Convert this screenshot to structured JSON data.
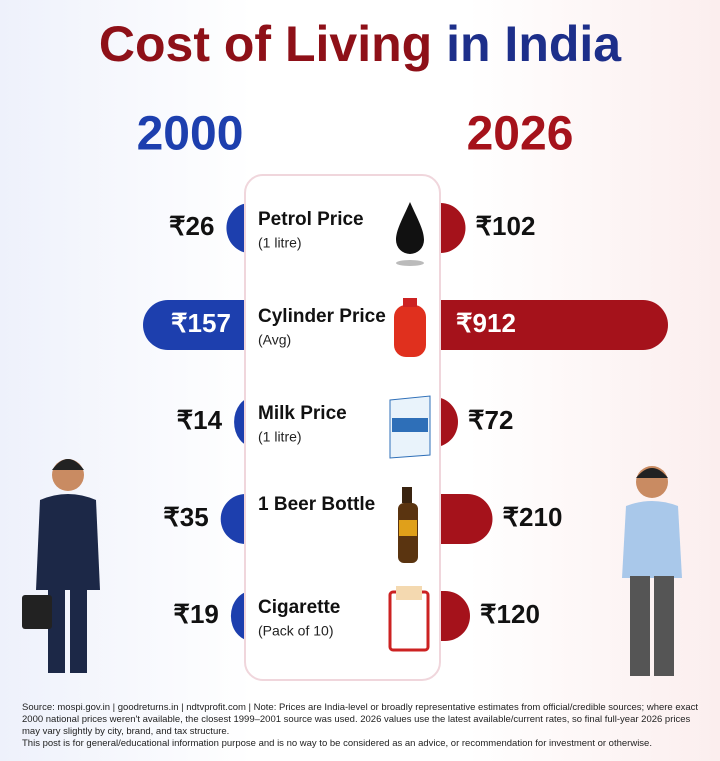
{
  "chart_data": {
    "type": "bar",
    "title_main": "Cost of Living",
    "title_accent": "in India",
    "categories": [
      "Petrol Price",
      "Cylinder Price",
      "Milk Price",
      "1 Beer Bottle",
      "Cigarette"
    ],
    "category_notes": [
      "(1 litre)",
      "(Avg)",
      "(1 litre)",
      null,
      "(Pack of 10)"
    ],
    "series": [
      {
        "name": "2000",
        "color": "#1d3fae",
        "values": [
          26,
          157,
          14,
          35,
          19
        ],
        "value_labels": [
          "₹26",
          "₹157",
          "₹14",
          "₹35",
          "₹19"
        ]
      },
      {
        "name": "2026",
        "color": "#a5121b",
        "values": [
          102,
          912,
          72,
          210,
          120
        ],
        "value_labels": [
          "₹102",
          "₹912",
          "₹72",
          "₹210",
          "₹120"
        ]
      }
    ]
  },
  "footer": {
    "source": "Source: mospi.gov.in | goodreturns.in | ndtvprofit.com | Note: Prices are India-level or broadly representative estimates from official/credible sources; where exact 2000 national prices weren't available, the closest 1999–2001 source was used. 2026 values use the latest available/current rates, so final full-year 2026 prices may vary slightly by city, brand, and tax structure.",
    "disclaimer": "This post is for general/educational information purpose and is no way to be considered as an advice, or recommendation for investment or otherwise."
  }
}
